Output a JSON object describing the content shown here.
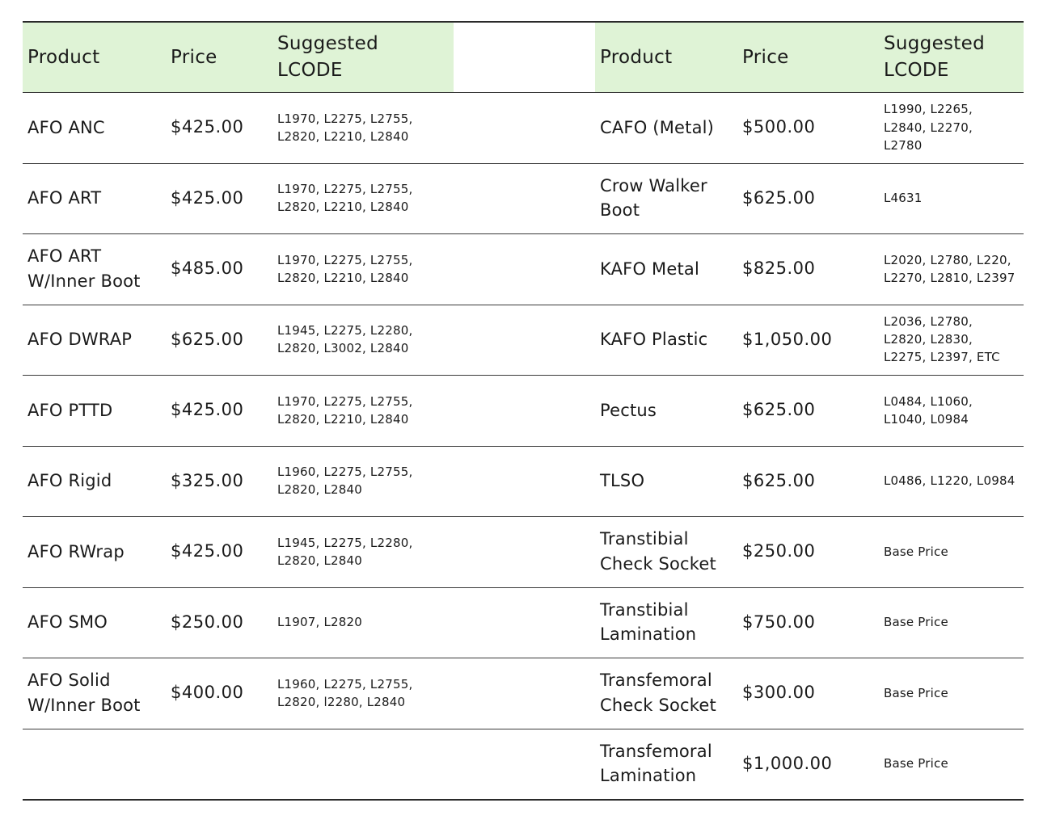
{
  "headers": {
    "product": "Product",
    "price": "Price",
    "lcode": "Suggested\nLCODE"
  },
  "left_table": [
    {
      "product": "AFO ANC",
      "price": "$425.00",
      "lcode": "L1970, L2275, L2755,\nL2820, L2210, L2840"
    },
    {
      "product": "AFO ART",
      "price": "$425.00",
      "lcode": "L1970, L2275, L2755,\nL2820, L2210, L2840"
    },
    {
      "product": "AFO ART\nW/Inner Boot",
      "price": "$485.00",
      "lcode": "L1970, L2275, L2755,\nL2820, L2210, L2840"
    },
    {
      "product": "AFO DWRAP",
      "price": "$625.00",
      "lcode": "L1945, L2275, L2280,\nL2820, L3002, L2840"
    },
    {
      "product": "AFO PTTD",
      "price": "$425.00",
      "lcode": "L1970, L2275, L2755,\nL2820, L2210, L2840"
    },
    {
      "product": "AFO Rigid",
      "price": "$325.00",
      "lcode": "L1960, L2275, L2755,\nL2820, L2840"
    },
    {
      "product": "AFO RWrap",
      "price": "$425.00",
      "lcode": "L1945, L2275, L2280,\nL2820, L2840"
    },
    {
      "product": "AFO SMO",
      "price": "$250.00",
      "lcode": "L1907, L2820"
    },
    {
      "product": "AFO Solid\nW/Inner Boot",
      "price": "$400.00",
      "lcode": "L1960, L2275, L2755,\nL2820, l2280, L2840"
    }
  ],
  "right_table": [
    {
      "product": "CAFO (Metal)",
      "price": "$500.00",
      "lcode": "L1990, L2265,\nL2840, L2270,\nL2780"
    },
    {
      "product": "Crow Walker\nBoot",
      "price": "$625.00",
      "lcode": "L4631"
    },
    {
      "product": "KAFO Metal",
      "price": "$825.00",
      "lcode": "L2020, L2780, L220,\nL2270, L2810, L2397"
    },
    {
      "product": "KAFO Plastic",
      "price": "$1,050.00",
      "lcode": "L2036, L2780,\nL2820, L2830,\nL2275, L2397, ETC"
    },
    {
      "product": "Pectus",
      "price": "$625.00",
      "lcode": "L0484, L1060,\nL1040, L0984"
    },
    {
      "product": "TLSO",
      "price": "$625.00",
      "lcode": "L0486, L1220, L0984"
    },
    {
      "product": "Transtibial\nCheck Socket",
      "price": "$250.00",
      "lcode": "Base Price"
    },
    {
      "product": "Transtibial\nLamination",
      "price": "$750.00",
      "lcode": "Base Price"
    },
    {
      "product": "Transfemoral\nCheck Socket",
      "price": "$300.00",
      "lcode": "Base Price"
    },
    {
      "product": "Transfemoral\nLamination",
      "price": "$1,000.00",
      "lcode": "Base Price"
    }
  ],
  "colors": {
    "header_bg": "#dff3d6",
    "rule": "#3a3a3a",
    "text": "#1a1a1a"
  }
}
